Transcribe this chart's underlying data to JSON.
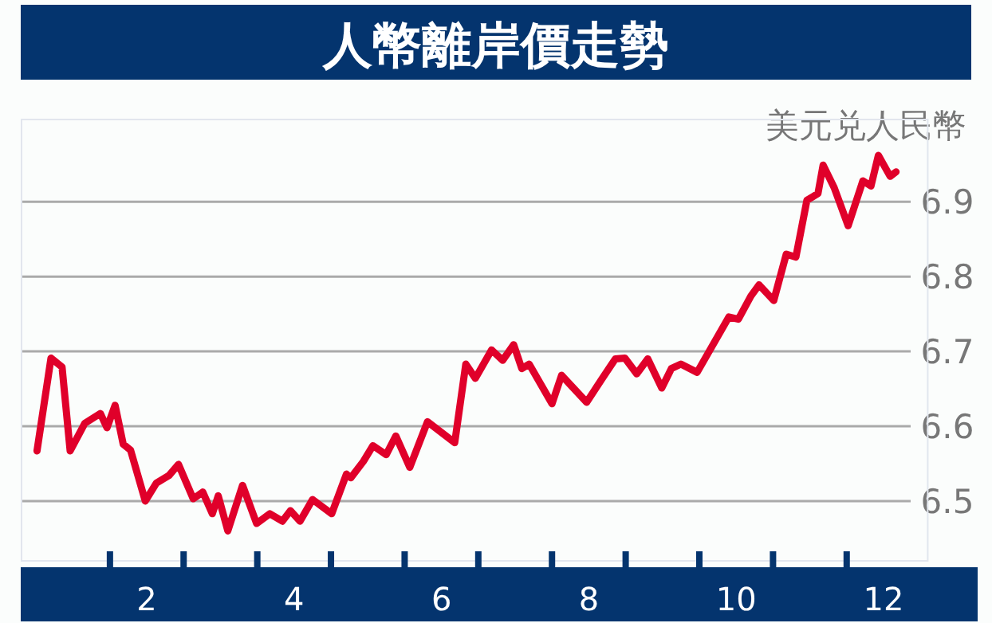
{
  "chart_data": {
    "type": "line",
    "title": "人幣離岸價走勢",
    "ylabel": "美元兑人民幣",
    "x": [
      0.51,
      0.7,
      0.85,
      0.96,
      1.16,
      1.37,
      1.46,
      1.57,
      1.68,
      1.78,
      1.98,
      2.13,
      2.3,
      2.43,
      2.63,
      2.76,
      2.89,
      2.97,
      3.1,
      3.3,
      3.49,
      3.67,
      3.84,
      3.95,
      4.08,
      4.25,
      4.51,
      4.71,
      4.77,
      4.94,
      5.07,
      5.25,
      5.38,
      5.57,
      5.81,
      6.18,
      6.33,
      6.46,
      6.68,
      6.83,
      6.98,
      7.09,
      7.19,
      7.5,
      7.63,
      7.97,
      8.17,
      8.36,
      8.49,
      8.65,
      8.8,
      8.99,
      9.12,
      9.25,
      9.47,
      9.9,
      10.03,
      10.2,
      10.31,
      10.51,
      10.68,
      10.81,
      10.96,
      11.11,
      11.18,
      11.33,
      11.52,
      11.72,
      11.83,
      11.93,
      12.09,
      12.17
    ],
    "values": [
      6.567,
      6.691,
      6.679,
      6.567,
      6.604,
      6.617,
      6.598,
      6.628,
      6.576,
      6.568,
      6.5,
      6.524,
      6.534,
      6.549,
      6.503,
      6.512,
      6.483,
      6.507,
      6.46,
      6.521,
      6.47,
      6.483,
      6.473,
      6.487,
      6.473,
      6.502,
      6.483,
      6.536,
      6.531,
      6.553,
      6.574,
      6.562,
      6.587,
      6.545,
      6.606,
      6.578,
      6.683,
      6.664,
      6.702,
      6.688,
      6.709,
      6.677,
      6.683,
      6.63,
      6.668,
      6.632,
      6.662,
      6.69,
      6.691,
      6.67,
      6.69,
      6.651,
      6.677,
      6.683,
      6.672,
      6.746,
      6.743,
      6.774,
      6.789,
      6.768,
      6.83,
      6.826,
      6.902,
      6.911,
      6.949,
      6.919,
      6.868,
      6.928,
      6.921,
      6.962,
      6.934,
      6.94
    ],
    "color": "#e0002a",
    "xlim": [
      0.3,
      12.6
    ],
    "xticks": [
      {
        "value": 1.5,
        "label": null
      },
      2,
      {
        "value": 2.5,
        "label": null
      },
      {
        "value": 3.5,
        "label": null
      },
      4,
      {
        "value": 4.5,
        "label": null
      },
      {
        "value": 5.5,
        "label": null
      },
      6,
      {
        "value": 6.5,
        "label": null
      },
      {
        "value": 7.5,
        "label": null
      },
      8,
      {
        "value": 8.5,
        "label": null
      },
      {
        "value": 9.5,
        "label": null
      },
      10,
      {
        "value": 10.5,
        "label": null
      },
      {
        "value": 11.5,
        "label": null
      },
      12
    ],
    "ylim": [
      6.42,
      7.01
    ],
    "yticks": [
      6.5,
      6.6,
      6.7,
      6.8,
      6.9
    ],
    "grid": "y"
  }
}
